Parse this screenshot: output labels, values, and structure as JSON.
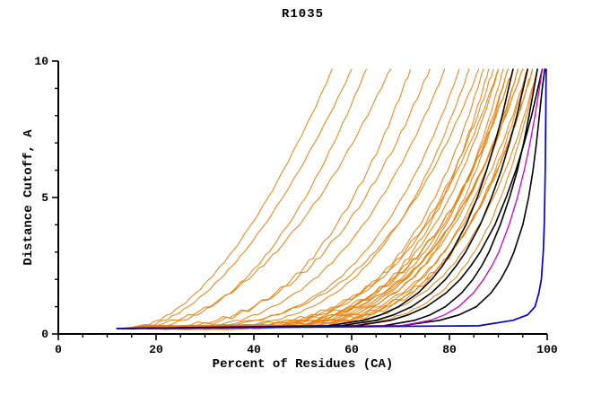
{
  "chart_data": {
    "type": "line",
    "title": "R1035",
    "xlabel": "Percent of Residues (CA)",
    "ylabel": "Distance Cutoff, A",
    "xlim": [
      0,
      100
    ],
    "ylim": [
      0,
      10
    ],
    "x_ticks_major": [
      0,
      20,
      40,
      60,
      80,
      100
    ],
    "y_ticks_major": [
      0,
      5,
      10
    ],
    "x_minor_step": 5,
    "y_minor_step": 1,
    "grid": false,
    "legend": "none",
    "colors": {
      "prediction": "#E8820E",
      "highlight": "#000000",
      "model2": "#CC00CC",
      "model1": "#0000DD"
    },
    "y_levels": [
      0.2,
      0.3,
      0.5,
      0.7,
      1.0,
      1.5,
      2.0,
      2.5,
      3.0,
      4.0,
      5.0,
      6.0,
      7.0,
      8.0,
      9.0,
      9.7
    ],
    "series": [
      {
        "color": "#E8820E",
        "width": 1,
        "x_at_levels": [
          14,
          17.4,
          20.3,
          22.3,
          24.8,
          28.1,
          30.8,
          33.2,
          35.5,
          39.4,
          42.9,
          46,
          48.9,
          51.7,
          54.3,
          56
        ]
      },
      {
        "color": "#E8820E",
        "width": 1,
        "x_at_levels": [
          15,
          18.7,
          21.8,
          23.9,
          26.6,
          30.1,
          33,
          35.6,
          38,
          42.2,
          45.9,
          49.3,
          52.4,
          55.4,
          58.2,
          60
        ]
      },
      {
        "color": "#E8820E",
        "width": 1,
        "x_at_levels": [
          16,
          22.1,
          25.9,
          28.5,
          31.4,
          35.2,
          38.2,
          40.8,
          43.1,
          47.1,
          50.6,
          53.6,
          56.4,
          59,
          61.4,
          63
        ]
      },
      {
        "color": "#E8820E",
        "width": 1,
        "x_at_levels": [
          13,
          20.1,
          24.6,
          27.6,
          31,
          35.5,
          39,
          42,
          44.7,
          49.4,
          53.5,
          57.1,
          60.3,
          63.3,
          66.1,
          68
        ]
      },
      {
        "color": "#E8820E",
        "width": 1,
        "x_at_levels": [
          17,
          28.2,
          33.4,
          36.6,
          40.1,
          44.4,
          47.7,
          50.5,
          52.9,
          56.9,
          60.3,
          63.3,
          66,
          68.3,
          70.5,
          72
        ]
      },
      {
        "color": "#E8820E",
        "width": 1,
        "x_at_levels": [
          14,
          26.6,
          32.5,
          36.1,
          40,
          44.9,
          48.7,
          51.8,
          54.4,
          59,
          62.8,
          66.1,
          69.2,
          71.8,
          74.3,
          76
        ]
      },
      {
        "color": "#E8820E",
        "width": 1,
        "x_at_levels": [
          18,
          30.4,
          36.2,
          39.8,
          43.6,
          48.4,
          52.1,
          55.1,
          57.8,
          62.3,
          66,
          69.3,
          72.3,
          74.9,
          77.4,
          79
        ]
      },
      {
        "color": "#E8820E",
        "width": 1,
        "x_at_levels": [
          15,
          33.7,
          40.5,
          44.3,
          48.5,
          53.4,
          57.1,
          60,
          62.6,
          66.9,
          70.3,
          73.4,
          76,
          78.4,
          80.6,
          82
        ]
      },
      {
        "color": "#E8820E",
        "width": 1,
        "x_at_levels": [
          20,
          37.9,
          44.3,
          48,
          52,
          56.7,
          60.2,
          63,
          65.4,
          69.5,
          72.9,
          75.7,
          78.3,
          80.5,
          82.7,
          84
        ]
      },
      {
        "color": "#E8820E",
        "width": 1,
        "x_at_levels": [
          13,
          33.4,
          40.7,
          45,
          49.5,
          54.8,
          58.8,
          62.1,
          64.8,
          69.5,
          73.3,
          76.6,
          79.5,
          82.1,
          84.5,
          86
        ]
      },
      {
        "color": "#E8820E",
        "width": 1,
        "x_at_levels": [
          16,
          42.1,
          49.2,
          53.1,
          57.2,
          61.9,
          65.3,
          68,
          70.2,
          74.1,
          77.1,
          79.7,
          82,
          84,
          85.8,
          87
        ]
      },
      {
        "color": "#E8820E",
        "width": 1,
        "x_at_levels": [
          22,
          46.2,
          52.9,
          56.5,
          60.3,
          64.6,
          67.8,
          70.3,
          72.4,
          76,
          78.8,
          81.2,
          83.3,
          85.2,
          86.9,
          88
        ]
      },
      {
        "color": "#E8820E",
        "width": 1,
        "x_at_levels": [
          12,
          40.3,
          48,
          52.3,
          56.7,
          61.7,
          65.4,
          68.4,
          70.8,
          75,
          78.3,
          81.1,
          83.5,
          85.8,
          87.7,
          89
        ]
      },
      {
        "color": "#E8820E",
        "width": 1,
        "x_at_levels": [
          18,
          44.4,
          51.7,
          55.7,
          59.8,
          64.5,
          68,
          70.7,
          73,
          76.9,
          80,
          82.6,
          84.9,
          87,
          88.8,
          90
        ]
      },
      {
        "color": "#E8820E",
        "width": 1,
        "x_at_levels": [
          25,
          43.1,
          49.7,
          53.5,
          57.5,
          62.2,
          65.8,
          68.7,
          71.2,
          75.3,
          78.7,
          81.6,
          84.2,
          86.5,
          88.6,
          90
        ]
      },
      {
        "color": "#E8820E",
        "width": 1,
        "x_at_levels": [
          14,
          47.9,
          55.3,
          59.4,
          63.3,
          67.8,
          71.1,
          73.7,
          75.8,
          79.3,
          82.1,
          84.5,
          86.5,
          88.3,
          89.9,
          91
        ]
      },
      {
        "color": "#E8820E",
        "width": 1,
        "x_at_levels": [
          20,
          46.4,
          53.7,
          57.7,
          61.8,
          66.5,
          70,
          72.7,
          75,
          78.9,
          82,
          84.6,
          86.9,
          89,
          90.8,
          92
        ]
      },
      {
        "color": "#E8820E",
        "width": 1,
        "x_at_levels": [
          16,
          49.4,
          56.8,
          60.8,
          64.6,
          69.1,
          72.3,
          74.9,
          77,
          80.4,
          83.2,
          85.5,
          87.6,
          89.3,
          90.9,
          92
        ]
      },
      {
        "color": "#E8820E",
        "width": 1,
        "x_at_levels": [
          28,
          46.1,
          52.7,
          56.5,
          60.5,
          65.2,
          68.8,
          71.7,
          74.2,
          78.3,
          81.7,
          84.6,
          87.2,
          89.5,
          91.6,
          93
        ]
      },
      {
        "color": "#E8820E",
        "width": 1,
        "x_at_levels": [
          13,
          42.4,
          50.4,
          54.8,
          59.4,
          64.7,
          68.5,
          71.6,
          74.1,
          78.4,
          81.9,
          84.8,
          87.3,
          89.6,
          91.6,
          93
        ]
      },
      {
        "color": "#E8820E",
        "width": 1,
        "x_at_levels": [
          22,
          48.4,
          55.7,
          59.7,
          63.8,
          68.5,
          72,
          74.7,
          77,
          80.9,
          84,
          86.6,
          88.9,
          91,
          92.8,
          94
        ]
      },
      {
        "color": "#E8820E",
        "width": 1,
        "x_at_levels": [
          17,
          50.9,
          58.3,
          62.4,
          66.3,
          70.8,
          74.1,
          76.7,
          78.8,
          82.3,
          85.1,
          87.5,
          89.5,
          91.3,
          92.9,
          94
        ]
      },
      {
        "color": "#E8820E",
        "width": 1,
        "x_at_levels": [
          30,
          48.1,
          54.7,
          58.5,
          62.5,
          67.2,
          70.8,
          73.7,
          76.2,
          80.3,
          83.7,
          86.6,
          89.2,
          91.5,
          93.6,
          95
        ]
      },
      {
        "color": "#E8820E",
        "width": 1,
        "x_at_levels": [
          15,
          44.4,
          52.4,
          56.8,
          61.4,
          66.7,
          70.5,
          73.6,
          76.1,
          80.4,
          83.9,
          86.8,
          89.3,
          91.6,
          93.6,
          95
        ]
      },
      {
        "color": "#E8820E",
        "width": 1,
        "x_at_levels": [
          24,
          50.4,
          57.7,
          61.7,
          65.8,
          70.5,
          74,
          76.7,
          79,
          82.9,
          86,
          88.6,
          90.9,
          93,
          94.8,
          96
        ]
      },
      {
        "color": "#E8820E",
        "width": 1,
        "x_at_levels": [
          18,
          52.3,
          59.9,
          63.9,
          67.9,
          72.5,
          75.8,
          78.5,
          80.6,
          84.1,
          87,
          89.4,
          91.5,
          93.3,
          94.9,
          96
        ]
      },
      {
        "color": "#E8820E",
        "width": 1,
        "x_at_levels": [
          13,
          50,
          58.1,
          62.5,
          66.8,
          71.7,
          75.2,
          78.1,
          80.5,
          84.2,
          87.3,
          89.9,
          92.1,
          94.1,
          95.8,
          97
        ]
      },
      {
        "color": "#E8820E",
        "width": 1,
        "x_at_levels": [
          26,
          52.1,
          59.2,
          63.1,
          67.2,
          71.9,
          75.3,
          78,
          80.2,
          84.1,
          87.1,
          89.7,
          92,
          94,
          95.8,
          97
        ]
      },
      {
        "color": "#E8820E",
        "width": 1,
        "x_at_levels": [
          20,
          54.3,
          61.9,
          65.9,
          69.9,
          74.5,
          77.8,
          80.5,
          82.6,
          86.1,
          89,
          91.4,
          93.5,
          95.3,
          96.9,
          98
        ]
      },
      {
        "color": "#E8820E",
        "width": 1,
        "x_at_levels": [
          16,
          59.3,
          66.6,
          70.3,
          74,
          78.1,
          80.9,
          83.2,
          85.1,
          88.2,
          90.5,
          92.5,
          94.2,
          95.8,
          97.1,
          98
        ]
      },
      {
        "color": "#000000",
        "width": 1.6,
        "x_at_levels": [
          13,
          55.2,
          62.4,
          66,
          69.6,
          73.6,
          76.4,
          78.6,
          80.4,
          83.4,
          85.7,
          87.6,
          89.3,
          90.8,
          92.1,
          93
        ]
      },
      {
        "color": "#000000",
        "width": 1.6,
        "x_at_levels": [
          15,
          57.8,
          65,
          68.6,
          72.3,
          76.3,
          79.2,
          81.4,
          83.3,
          86.3,
          88.6,
          90.6,
          92.3,
          93.8,
          95.1,
          96
        ]
      },
      {
        "color": "#000000",
        "width": 1.6,
        "x_at_levels": [
          12,
          66.5,
          72.9,
          76.1,
          79.2,
          82.5,
          84.8,
          86.6,
          88.1,
          90.4,
          92.3,
          93.9,
          95.2,
          96.3,
          97.3,
          98
        ]
      },
      {
        "color": "#000000",
        "width": 1.6,
        "x_at_levels": [
          18,
          60.8,
          68,
          71.6,
          75.3,
          79.3,
          82.2,
          84.4,
          86.3,
          89.3,
          91.6,
          93.6,
          95.3,
          96.8,
          98.1,
          99
        ]
      },
      {
        "color": "#000000",
        "width": 1.6,
        "x_at_levels": [
          14,
          70,
          78,
          82,
          85.5,
          88.5,
          90.5,
          92,
          93.2,
          95,
          96.2,
          97.1,
          97.8,
          98.4,
          99,
          99.5
        ]
      },
      {
        "color": "#CC00CC",
        "width": 1.3,
        "x_at_levels": [
          13,
          70.1,
          76.1,
          79,
          81.9,
          84.9,
          87,
          88.7,
          90.1,
          92.2,
          93.9,
          95.3,
          96.5,
          97.5,
          98.4,
          99
        ]
      },
      {
        "color": "#0000DD",
        "width": 1.7,
        "x_at_levels": [
          12,
          86,
          93,
          96,
          97.5,
          98.3,
          98.8,
          99,
          99.2,
          99.4,
          99.5,
          99.6,
          99.65,
          99.7,
          99.75,
          99.8
        ]
      }
    ]
  }
}
